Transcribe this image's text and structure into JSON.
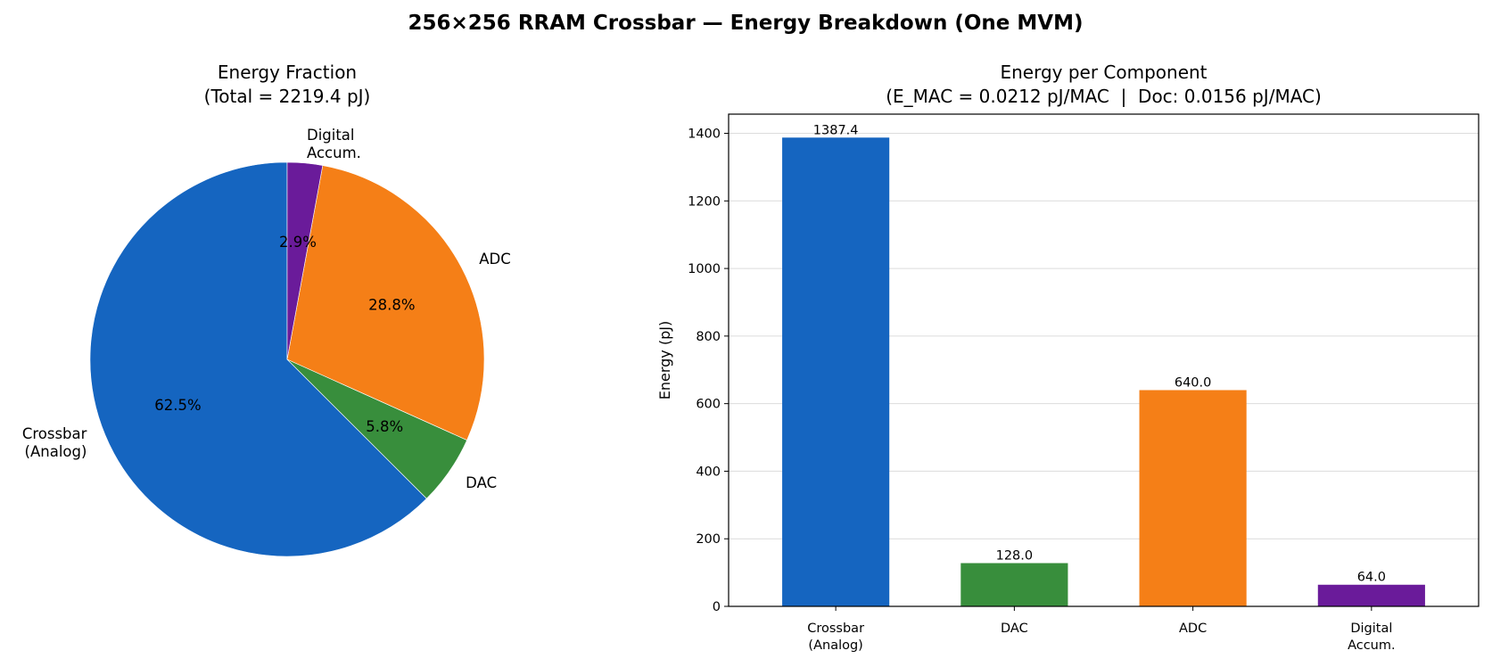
{
  "suptitle": "256×256 RRAM Crossbar — Energy Breakdown (One MVM)",
  "chart_data": [
    {
      "type": "pie",
      "title_lines": [
        "Energy Fraction",
        "(Total = 2219.4 pJ)"
      ],
      "start_angle_deg": 90,
      "direction": "counterclockwise",
      "slices": [
        {
          "label_lines": [
            "Crossbar",
            "(Analog)"
          ],
          "value": 1387.4,
          "pct_label": "62.5%",
          "color": "#1565C0"
        },
        {
          "label_lines": [
            "DAC"
          ],
          "value": 128.0,
          "pct_label": "5.8%",
          "color": "#388E3C"
        },
        {
          "label_lines": [
            "ADC"
          ],
          "value": 640.0,
          "pct_label": "28.8%",
          "color": "#F57F17"
        },
        {
          "label_lines": [
            "Digital",
            "Accum."
          ],
          "value": 64.0,
          "pct_label": "2.9%",
          "color": "#6A1B9A"
        }
      ]
    },
    {
      "type": "bar",
      "title_lines": [
        "Energy per Component",
        "(E_MAC = 0.0212 pJ/MAC  |  Doc: 0.0156 pJ/MAC)"
      ],
      "categories": [
        [
          "Crossbar",
          "(Analog)"
        ],
        [
          "DAC"
        ],
        [
          "ADC"
        ],
        [
          "Digital",
          "Accum."
        ]
      ],
      "values": [
        1387.4,
        128.0,
        640.0,
        64.0
      ],
      "value_labels": [
        "1387.4",
        "128.0",
        "640.0",
        "64.0"
      ],
      "colors": [
        "#1565C0",
        "#388E3C",
        "#F57F17",
        "#6A1B9A"
      ],
      "ylabel": "Energy (pJ)",
      "ylim": [
        0,
        1456.8
      ],
      "yticks": [
        0,
        200,
        400,
        600,
        800,
        1000,
        1200,
        1400
      ],
      "grid": "y"
    }
  ]
}
